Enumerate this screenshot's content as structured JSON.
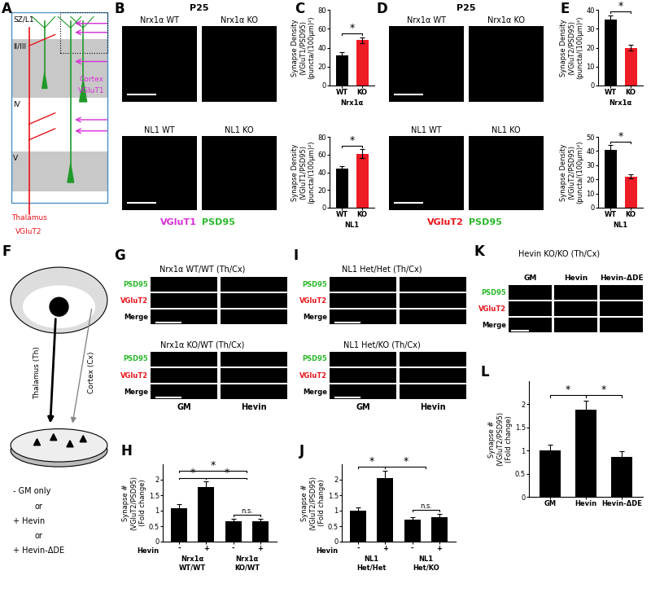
{
  "schematic_A": {
    "panel": "A",
    "layers": [
      "SZ/L1",
      "II/III",
      "IV",
      "V"
    ],
    "cortex": {
      "label": "Cortex",
      "marker": "VGluT1",
      "color": "#d62fd6"
    },
    "thalamus": {
      "label": "Thalamus",
      "marker": "VGluT2",
      "color": "#e8141b"
    }
  },
  "schematic_F": {
    "panel": "F",
    "thalamus": "Thalamus (Th)",
    "cortex": "Cortex (Cx)",
    "conditions": [
      "- GM only",
      "or",
      "+ Hevin",
      "or",
      "+ Hevin-ΔDE"
    ]
  },
  "images": [
    {
      "panel": "B",
      "age": "P25",
      "titles": [
        [
          "Nrx1α WT",
          "Nrx1α KO"
        ],
        [
          "NL1 WT",
          "NL1 KO"
        ]
      ],
      "stains": [
        {
          "name": "VGluT1",
          "color": "#d62fd6"
        },
        {
          "name": "PSD95",
          "color": "#27b827"
        }
      ]
    },
    {
      "panel": "D",
      "age": "P25",
      "titles": [
        [
          "Nrx1α WT",
          "Nrx1α KO"
        ],
        [
          "NL1 WT",
          "NL1 KO"
        ]
      ],
      "stains": [
        {
          "name": "VGluT2",
          "color": "#e8141b"
        },
        {
          "name": "PSD95",
          "color": "#27b827"
        }
      ]
    },
    {
      "panel": "G",
      "blocks": [
        "Nrx1α WT/WT (Th/Cx)",
        "Nrx1α KO/WT (Th/Cx)"
      ],
      "rows": [
        {
          "name": "PSD95",
          "color": "#27b827"
        },
        {
          "name": "VGluT2",
          "color": "#e8141b"
        },
        {
          "name": "Merge",
          "color": "#000000"
        }
      ],
      "columns": [
        "GM",
        "Hevin"
      ]
    },
    {
      "panel": "I",
      "blocks": [
        "NL1 Het/Het (Th/Cx)",
        "NL1 Het/KO (Th/Cx)"
      ],
      "rows": [
        {
          "name": "PSD95",
          "color": "#27b827"
        },
        {
          "name": "VGluT2",
          "color": "#e8141b"
        },
        {
          "name": "Merge",
          "color": "#000000"
        }
      ],
      "columns": [
        "GM",
        "Hevin"
      ]
    },
    {
      "panel": "K",
      "blocks": [
        "Hevin KO/KO (Th/Cx)"
      ],
      "rows": [
        {
          "name": "PSD95",
          "color": "#27b827"
        },
        {
          "name": "VGluT2",
          "color": "#e8141b"
        },
        {
          "name": "Merge",
          "color": "#000000"
        }
      ],
      "columns": [
        "GM",
        "Hevin",
        "Hevin-ΔDE"
      ]
    }
  ],
  "chart_data": [
    {
      "panel": "C",
      "type": "bar",
      "y_label": "Synapse Density\n(VGluT1/PSD95)\n(puncta/(100μm)²)",
      "categories": [
        "WT",
        "KO"
      ],
      "values": [
        32,
        48
      ],
      "errors": [
        3,
        3
      ],
      "colors": [
        "#000000",
        "#ee1c25"
      ],
      "groups": [
        {
          "label": "Nrx1α",
          "members": [
            0,
            1
          ]
        }
      ],
      "ylim": [
        0,
        80
      ],
      "yticks": [
        0,
        20,
        40,
        60,
        80
      ],
      "significance": [
        {
          "from": [
            0
          ],
          "to": [
            1
          ],
          "label": "*"
        }
      ]
    },
    {
      "panel": "C",
      "type": "bar",
      "y_label": "Synapse Density\n(VGluT1/PSD95)\n(puncta/(100μm)²)",
      "categories": [
        "WT",
        "KO"
      ],
      "values": [
        44,
        61
      ],
      "errors": [
        3,
        5
      ],
      "colors": [
        "#000000",
        "#ee1c25"
      ],
      "groups": [
        {
          "label": "NL1",
          "members": [
            0,
            1
          ]
        }
      ],
      "ylim": [
        0,
        80
      ],
      "yticks": [
        0,
        20,
        40,
        60,
        80
      ],
      "significance": [
        {
          "from": [
            0
          ],
          "to": [
            1
          ],
          "label": "*"
        }
      ]
    },
    {
      "panel": "E",
      "type": "bar",
      "y_label": "Synapse Density\n(VGluT2/PSD95)\n(puncta/(100μm)²)",
      "categories": [
        "WT",
        "KO"
      ],
      "values": [
        35,
        20
      ],
      "errors": [
        2,
        1.5
      ],
      "colors": [
        "#000000",
        "#ee1c25"
      ],
      "groups": [
        {
          "label": "Nrx1α",
          "members": [
            0,
            1
          ]
        }
      ],
      "ylim": [
        0,
        40
      ],
      "yticks": [
        0,
        10,
        20,
        30,
        40
      ],
      "significance": [
        {
          "from": [
            0
          ],
          "to": [
            1
          ],
          "label": "*"
        }
      ]
    },
    {
      "panel": "E",
      "type": "bar",
      "y_label": "Synapse Density\n(VGluT2/PSD95)\n(puncta/(100μm)²)",
      "categories": [
        "WT",
        "KO"
      ],
      "values": [
        41,
        22
      ],
      "errors": [
        3,
        1.5
      ],
      "colors": [
        "#000000",
        "#ee1c25"
      ],
      "groups": [
        {
          "label": "NL1",
          "members": [
            0,
            1
          ]
        }
      ],
      "ylim": [
        0,
        50
      ],
      "yticks": [
        0,
        10,
        20,
        30,
        40,
        50
      ],
      "significance": [
        {
          "from": [
            0
          ],
          "to": [
            1
          ],
          "label": "*"
        }
      ]
    },
    {
      "panel": "H",
      "type": "bar",
      "y_label": "Synapse #\n(VGluT2/PSD95)\n(Fold change)",
      "row_label": "Hevin",
      "categories": [
        "-",
        "+",
        "-",
        "+"
      ],
      "values": [
        1.07,
        1.77,
        0.65,
        0.65
      ],
      "errors": [
        0.15,
        0.17,
        0.1,
        0.08
      ],
      "colors": [
        "#000000",
        "#000000",
        "#000000",
        "#000000"
      ],
      "groups": [
        {
          "label": "Nrx1α\nWT/WT",
          "members": [
            0,
            1
          ]
        },
        {
          "label": "Nrx1α\nKO/WT",
          "members": [
            2,
            3
          ]
        }
      ],
      "ylim": [
        0,
        2.5
      ],
      "yticks": [
        0,
        0.5,
        1,
        1.5,
        2
      ],
      "significance": [
        {
          "from": [
            2
          ],
          "to": [
            3
          ],
          "label": "n.s."
        },
        {
          "from": [
            0
          ],
          "to": [
            1
          ],
          "label": "*"
        },
        {
          "from": [
            1
          ],
          "to": [
            2,
            3
          ],
          "label": "*"
        },
        {
          "from": [
            0
          ],
          "to": [
            2,
            3
          ],
          "label": "*"
        }
      ]
    },
    {
      "panel": "J",
      "type": "bar",
      "y_label": "Synapse #\n(VGluT2/PSD95)\n(Fold change)",
      "row_label": "Hevin",
      "categories": [
        "-",
        "+",
        "-",
        "+"
      ],
      "values": [
        1.0,
        2.05,
        0.72,
        0.8
      ],
      "errors": [
        0.1,
        0.25,
        0.08,
        0.1
      ],
      "colors": [
        "#000000",
        "#000000",
        "#000000",
        "#000000"
      ],
      "groups": [
        {
          "label": "NL1\nHet/Het",
          "members": [
            0,
            1
          ]
        },
        {
          "label": "NL1\nHet/KO",
          "members": [
            2,
            3
          ]
        }
      ],
      "ylim": [
        0,
        2.5
      ],
      "yticks": [
        0,
        0.5,
        1,
        1.5,
        2
      ],
      "significance": [
        {
          "from": [
            2
          ],
          "to": [
            3
          ],
          "label": "n.s."
        },
        {
          "from": [
            0
          ],
          "to": [
            1
          ],
          "label": "*"
        },
        {
          "from": [
            1
          ],
          "to": [
            2,
            3
          ],
          "label": "*"
        }
      ]
    },
    {
      "panel": "L",
      "type": "bar",
      "y_label": "Synapse #\n(VGluT2/PSD95)\n(Fold change)",
      "categories": [
        "GM",
        "Hevin",
        "Hevin-ΔDE"
      ],
      "values": [
        1.0,
        1.88,
        0.87
      ],
      "errors": [
        0.12,
        0.2,
        0.12
      ],
      "colors": [
        "#000000",
        "#000000",
        "#000000"
      ],
      "ylim": [
        0,
        2.5
      ],
      "yticks": [
        0,
        0.5,
        1,
        1.5,
        2
      ],
      "significance": [
        {
          "from": [
            0
          ],
          "to": [
            1
          ],
          "label": "*"
        },
        {
          "from": [
            1
          ],
          "to": [
            2
          ],
          "label": "*"
        }
      ]
    }
  ]
}
